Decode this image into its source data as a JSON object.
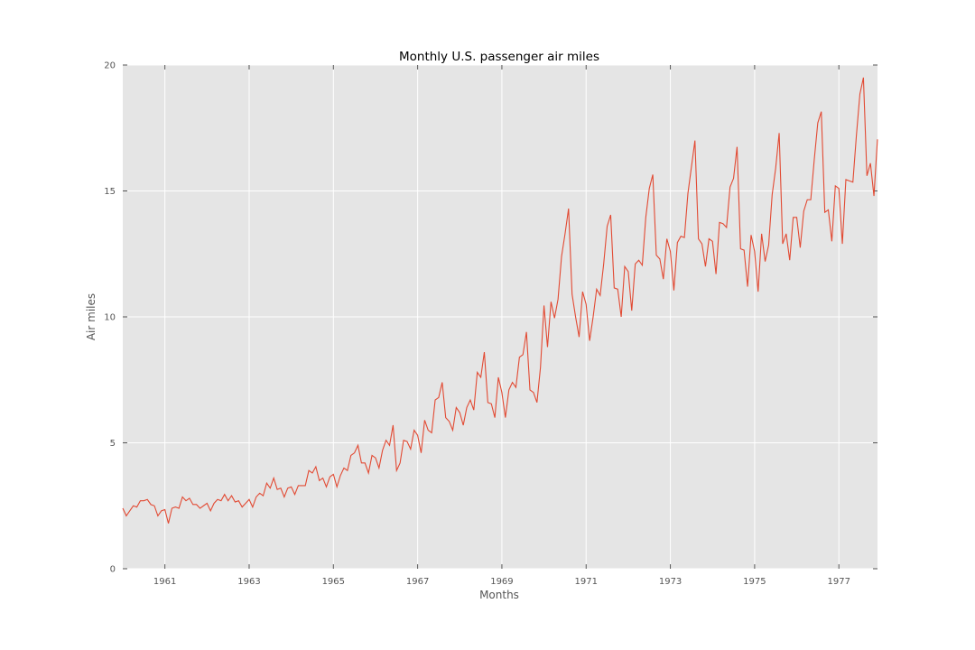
{
  "chart_data": {
    "type": "line",
    "title": "Monthly U.S. passenger air miles",
    "xlabel": "Months",
    "ylabel": "Air miles",
    "xlim": [
      1960.0,
      1977.917
    ],
    "ylim": [
      0,
      20
    ],
    "x_ticks": [
      1961,
      1963,
      1965,
      1967,
      1969,
      1971,
      1973,
      1975,
      1977
    ],
    "x_tick_labels": [
      "1961",
      "1963",
      "1965",
      "1967",
      "1969",
      "1971",
      "1973",
      "1975",
      "1977"
    ],
    "y_ticks": [
      0,
      5,
      10,
      15,
      20
    ],
    "y_tick_labels": [
      "0",
      "5",
      "10",
      "15",
      "20"
    ],
    "grid": true,
    "x_start": 1960.0,
    "x_step": 0.08333,
    "series": [
      {
        "color": "#e24a33",
        "values": [
          2.4,
          2.1,
          2.3,
          2.5,
          2.45,
          2.7,
          2.7,
          2.75,
          2.55,
          2.5,
          2.1,
          2.3,
          2.35,
          1.8,
          2.4,
          2.45,
          2.4,
          2.85,
          2.7,
          2.8,
          2.55,
          2.55,
          2.4,
          2.5,
          2.6,
          2.3,
          2.6,
          2.75,
          2.7,
          2.95,
          2.7,
          2.9,
          2.65,
          2.7,
          2.45,
          2.6,
          2.75,
          2.45,
          2.85,
          3.0,
          2.9,
          3.4,
          3.2,
          3.6,
          3.15,
          3.2,
          2.85,
          3.2,
          3.25,
          2.95,
          3.3,
          3.3,
          3.3,
          3.9,
          3.8,
          4.05,
          3.5,
          3.6,
          3.25,
          3.65,
          3.75,
          3.25,
          3.7,
          4.0,
          3.9,
          4.5,
          4.6,
          4.9,
          4.2,
          4.2,
          3.8,
          4.5,
          4.4,
          4.0,
          4.7,
          5.1,
          4.9,
          5.7,
          3.9,
          4.2,
          5.1,
          5.05,
          4.75,
          5.5,
          5.3,
          4.6,
          5.9,
          5.5,
          5.4,
          6.7,
          6.8,
          7.4,
          6.0,
          5.85,
          5.5,
          6.4,
          6.2,
          5.7,
          6.4,
          6.7,
          6.3,
          7.8,
          7.6,
          8.6,
          6.6,
          6.55,
          6.0,
          7.6,
          7.0,
          6.0,
          7.1,
          7.4,
          7.2,
          8.4,
          8.5,
          9.4,
          7.1,
          7.0,
          6.6,
          8.0,
          10.45,
          8.8,
          10.6,
          9.95,
          10.7,
          12.4,
          13.3,
          14.3,
          10.9,
          10.0,
          9.2,
          11.0,
          10.5,
          9.05,
          10.0,
          11.1,
          10.85,
          12.1,
          13.6,
          14.05,
          11.15,
          11.1,
          10.0,
          12.0,
          11.8,
          10.25,
          12.1,
          12.25,
          12.05,
          13.95,
          15.1,
          15.65,
          12.45,
          12.3,
          11.5,
          13.1,
          12.6,
          11.05,
          12.95,
          13.2,
          13.15,
          14.9,
          15.95,
          17.0,
          13.1,
          12.9,
          12.0,
          13.1,
          13.0,
          11.7,
          13.75,
          13.7,
          13.55,
          15.15,
          15.5,
          16.75,
          12.7,
          12.65,
          11.2,
          13.25,
          12.6,
          11.0,
          13.3,
          12.2,
          12.85,
          14.85,
          15.9,
          17.3,
          12.9,
          13.3,
          12.25,
          13.95,
          13.95,
          12.75,
          14.2,
          14.65,
          14.65,
          16.25,
          17.7,
          18.15,
          14.15,
          14.25,
          13.0,
          15.2,
          15.1,
          12.9,
          15.45,
          15.4,
          15.35,
          17.2,
          18.85,
          19.5,
          15.6,
          16.1,
          14.8,
          17.05
        ]
      }
    ]
  }
}
